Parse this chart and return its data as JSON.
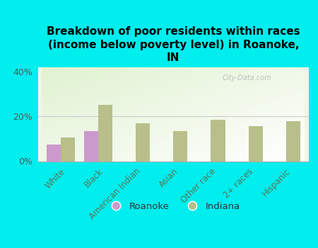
{
  "title": "Breakdown of poor residents within races\n(income below poverty level) in Roanoke,\nIN",
  "categories": [
    "White",
    "Black",
    "American Indian",
    "Asian",
    "Other race",
    "2+ races",
    "Hispanic"
  ],
  "roanoke_values": [
    7.5,
    13.5,
    0.0,
    0.0,
    0.0,
    0.0,
    0.0
  ],
  "indiana_values": [
    10.5,
    25.0,
    17.0,
    13.5,
    18.5,
    15.5,
    18.0
  ],
  "roanoke_color": "#cc99cc",
  "indiana_color": "#b8bf8a",
  "background_color": "#00eeee",
  "ylim": [
    0,
    42
  ],
  "yticks": [
    0,
    20,
    40
  ],
  "ytick_labels": [
    "0%",
    "20%",
    "40%"
  ],
  "watermark": "City-Data.com",
  "bar_width": 0.38,
  "title_fontsize": 11,
  "tick_fontsize": 8.5,
  "ytick_fontsize": 9
}
